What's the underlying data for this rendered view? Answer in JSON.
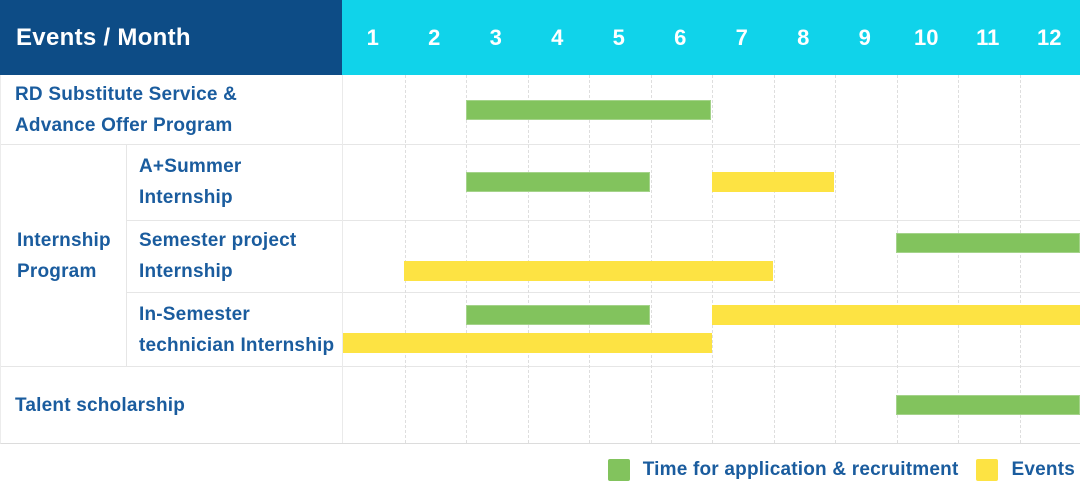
{
  "header": {
    "corner_label": "Events / Month",
    "months": [
      "1",
      "2",
      "3",
      "4",
      "5",
      "6",
      "7",
      "8",
      "9",
      "10",
      "11",
      "12"
    ]
  },
  "group": {
    "label_lines": [
      "Internship",
      "Program"
    ]
  },
  "rows": [
    {
      "id": "rd-substitute",
      "label_lines": [
        "RD Substitute Service &",
        "Advance Offer Program"
      ],
      "bars": [
        {
          "color": "green",
          "start": 3,
          "end": 6,
          "lane": "center"
        }
      ]
    },
    {
      "id": "a-plus-summer",
      "label_lines": [
        "A+Summer",
        "Internship"
      ],
      "bars": [
        {
          "color": "green",
          "start": 3,
          "end": 5,
          "lane": "center"
        },
        {
          "color": "yellow",
          "start": 7,
          "end": 8,
          "lane": "center"
        }
      ]
    },
    {
      "id": "semester-project",
      "label_lines": [
        "Semester project",
        "Internship"
      ],
      "bars": [
        {
          "color": "green",
          "start": 10,
          "end": 12,
          "lane": "top"
        },
        {
          "color": "yellow",
          "start": 2,
          "end": 7,
          "lane": "bottom"
        }
      ]
    },
    {
      "id": "in-semester-technician",
      "label_lines": [
        "In-Semester",
        "technician Internship"
      ],
      "bars": [
        {
          "color": "green",
          "start": 3,
          "end": 5,
          "lane": "top"
        },
        {
          "color": "yellow",
          "start": 7,
          "end": 12,
          "lane": "top"
        },
        {
          "color": "yellow",
          "start": 1,
          "end": 6,
          "lane": "bottom"
        }
      ]
    },
    {
      "id": "talent-scholarship",
      "label_lines": [
        "Talent scholarship"
      ],
      "bars": [
        {
          "color": "green",
          "start": 10,
          "end": 12,
          "lane": "center"
        }
      ]
    }
  ],
  "legend": [
    {
      "id": "application",
      "color": "green",
      "label": "Time for application & recruitment"
    },
    {
      "id": "events",
      "color": "yellow",
      "label": "Events"
    }
  ],
  "colors": {
    "navy": "#0d4c86",
    "cyan": "#10d3ea",
    "green": "#82c35d",
    "yellow": "#fde343",
    "label_blue": "#1a5c9e"
  },
  "chart_data": {
    "type": "gantt",
    "title": "Events / Month",
    "x_axis": {
      "label": "Month",
      "ticks": [
        1,
        2,
        3,
        4,
        5,
        6,
        7,
        8,
        9,
        10,
        11,
        12
      ],
      "range": [
        1,
        12
      ]
    },
    "grid": true,
    "legend_position": "bottom-right",
    "legend": {
      "green": "Time for application & recruitment",
      "yellow": "Events"
    },
    "tasks": [
      {
        "row": "RD Substitute Service & Advance Offer Program",
        "group": null,
        "bars": [
          {
            "type": "application_recruitment",
            "color": "green",
            "month_start": 3,
            "month_end": 6
          }
        ]
      },
      {
        "row": "A+Summer Internship",
        "group": "Internship Program",
        "bars": [
          {
            "type": "application_recruitment",
            "color": "green",
            "month_start": 3,
            "month_end": 5
          },
          {
            "type": "event",
            "color": "yellow",
            "month_start": 7,
            "month_end": 8
          }
        ]
      },
      {
        "row": "Semester project Internship",
        "group": "Internship Program",
        "bars": [
          {
            "type": "application_recruitment",
            "color": "green",
            "month_start": 10,
            "month_end": 12
          },
          {
            "type": "event",
            "color": "yellow",
            "month_start": 2,
            "month_end": 7
          }
        ]
      },
      {
        "row": "In-Semester technician Internship",
        "group": "Internship Program",
        "bars": [
          {
            "type": "application_recruitment",
            "color": "green",
            "month_start": 3,
            "month_end": 5
          },
          {
            "type": "event",
            "color": "yellow",
            "month_start": 7,
            "month_end": 12
          },
          {
            "type": "event",
            "color": "yellow",
            "month_start": 1,
            "month_end": 6
          }
        ]
      },
      {
        "row": "Talent scholarship",
        "group": null,
        "bars": [
          {
            "type": "application_recruitment",
            "color": "green",
            "month_start": 10,
            "month_end": 12
          }
        ]
      }
    ]
  }
}
